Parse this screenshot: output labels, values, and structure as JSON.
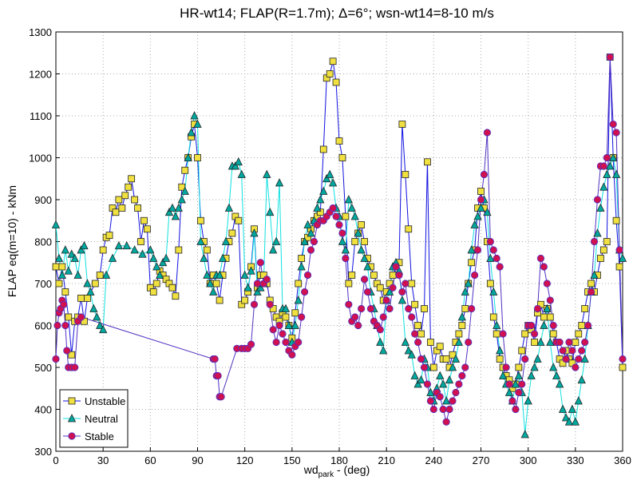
{
  "chart_data": {
    "type": "line",
    "title": "HR-wt14; FLAP(R=1.7m); Δ=6°; wsn-wt14=8-10 m/s",
    "x_label": {
      "text": "wd",
      "subscript": "park",
      "suffix": " - (deg)"
    },
    "y_label": "FLAP eq(m=10) - kNm",
    "xlim": [
      0,
      360
    ],
    "xticks": [
      0,
      30,
      60,
      90,
      120,
      150,
      180,
      210,
      240,
      270,
      300,
      330,
      360
    ],
    "ylim": [
      300,
      1300
    ],
    "yticks": [
      300,
      400,
      500,
      600,
      700,
      800,
      900,
      1000,
      1100,
      1200,
      1300
    ],
    "grid": true,
    "legend_loc": "lower left",
    "series": [
      {
        "name": "Unstable",
        "color": "#1010e0",
        "marker": "square",
        "marker_color": "#f0e040",
        "x": [
          0,
          2,
          4,
          6,
          8,
          10,
          12,
          14,
          16,
          18,
          20,
          25,
          28,
          30,
          32,
          34,
          36,
          38,
          40,
          42,
          44,
          46,
          48,
          50,
          52,
          54,
          56,
          58,
          60,
          62,
          64,
          66,
          68,
          70,
          72,
          74,
          76,
          78,
          80,
          82,
          84,
          86,
          88,
          90,
          92,
          94,
          96,
          98,
          100,
          102,
          104,
          106,
          108,
          110,
          112,
          114,
          116,
          118,
          120,
          122,
          124,
          126,
          128,
          130,
          132,
          134,
          136,
          138,
          140,
          142,
          144,
          146,
          148,
          150,
          152,
          154,
          156,
          158,
          160,
          162,
          164,
          166,
          168,
          170,
          172,
          174,
          176,
          178,
          180,
          182,
          184,
          186,
          188,
          190,
          192,
          194,
          196,
          198,
          200,
          202,
          204,
          206,
          208,
          210,
          212,
          214,
          216,
          218,
          220,
          222,
          224,
          226,
          228,
          230,
          232,
          234,
          236,
          238,
          240,
          242,
          244,
          246,
          248,
          250,
          252,
          254,
          256,
          258,
          260,
          262,
          264,
          266,
          268,
          270,
          272,
          274,
          276,
          278,
          280,
          282,
          284,
          286,
          288,
          290,
          292,
          294,
          296,
          298,
          300,
          302,
          304,
          306,
          308,
          310,
          312,
          314,
          316,
          318,
          320,
          322,
          324,
          326,
          328,
          330,
          332,
          334,
          336,
          338,
          340,
          342,
          344,
          346,
          348,
          350,
          352,
          354,
          356,
          358,
          360
        ],
        "values": [
          740,
          700,
          740,
          680,
          620,
          530,
          610,
          620,
          665,
          610,
          665,
          700,
          720,
          780,
          810,
          815,
          880,
          870,
          900,
          880,
          910,
          930,
          950,
          900,
          880,
          800,
          850,
          830,
          690,
          680,
          700,
          730,
          720,
          710,
          700,
          690,
          670,
          780,
          930,
          970,
          1000,
          1050,
          1080,
          1000,
          850,
          800,
          780,
          700,
          720,
          700,
          660,
          720,
          760,
          800,
          820,
          860,
          850,
          650,
          660,
          680,
          740,
          830,
          690,
          720,
          720,
          700,
          660,
          640,
          620,
          610,
          630,
          620,
          600,
          570,
          630,
          700,
          760,
          800,
          810,
          830,
          850,
          860,
          870,
          1020,
          1190,
          1200,
          1230,
          1180,
          1040,
          1000,
          860,
          700,
          720,
          800,
          820,
          840,
          800,
          760,
          740,
          720,
          700,
          690,
          660,
          680,
          700,
          720,
          740,
          750,
          1080,
          960,
          830,
          700,
          650,
          600,
          580,
          640,
          990,
          560,
          500,
          540,
          550,
          520,
          520,
          500,
          530,
          560,
          580,
          600,
          640,
          700,
          750,
          780,
          880,
          920,
          880,
          800,
          700,
          620,
          580,
          520,
          500,
          480,
          470,
          450,
          460,
          500,
          540,
          580,
          600,
          590,
          560,
          630,
          650,
          620,
          640,
          620,
          580,
          560,
          520,
          510,
          540,
          520,
          510,
          560,
          580,
          600,
          640,
          680,
          700,
          680,
          720,
          760,
          780,
          800,
          1240,
          1000,
          850,
          740,
          500
        ]
      },
      {
        "name": "Neutral",
        "color": "#10e0e0",
        "marker": "triangle",
        "marker_color": "#00a8a0",
        "x": [
          0,
          2,
          4,
          6,
          8,
          10,
          12,
          14,
          16,
          18,
          20,
          22,
          24,
          26,
          28,
          30,
          32,
          36,
          40,
          45,
          50,
          55,
          60,
          62,
          64,
          66,
          68,
          70,
          72,
          74,
          76,
          78,
          80,
          82,
          84,
          86,
          88,
          90,
          92,
          94,
          96,
          98,
          100,
          102,
          104,
          106,
          108,
          110,
          112,
          114,
          116,
          118,
          120,
          122,
          124,
          126,
          128,
          130,
          132,
          134,
          136,
          138,
          140,
          142,
          144,
          146,
          148,
          150,
          152,
          154,
          156,
          158,
          160,
          162,
          164,
          166,
          168,
          170,
          172,
          174,
          176,
          178,
          180,
          182,
          184,
          186,
          188,
          190,
          192,
          194,
          196,
          198,
          200,
          202,
          204,
          206,
          208,
          210,
          212,
          214,
          216,
          218,
          220,
          222,
          224,
          226,
          228,
          230,
          232,
          234,
          236,
          238,
          240,
          242,
          244,
          246,
          248,
          250,
          252,
          254,
          256,
          258,
          260,
          262,
          264,
          266,
          268,
          270,
          272,
          274,
          276,
          278,
          280,
          282,
          284,
          286,
          288,
          290,
          292,
          294,
          296,
          298,
          300,
          302,
          304,
          306,
          308,
          310,
          312,
          314,
          316,
          318,
          320,
          322,
          324,
          326,
          328,
          330,
          332,
          334,
          336,
          338,
          340,
          342,
          344,
          346,
          348,
          350,
          352,
          354,
          356,
          358,
          360
        ],
        "values": [
          840,
          760,
          720,
          780,
          730,
          770,
          760,
          720,
          780,
          790,
          700,
          680,
          640,
          620,
          600,
          590,
          720,
          760,
          790,
          790,
          780,
          770,
          780,
          760,
          740,
          720,
          750,
          760,
          870,
          880,
          860,
          880,
          900,
          920,
          1000,
          1060,
          1100,
          1080,
          800,
          760,
          720,
          700,
          680,
          720,
          720,
          760,
          800,
          880,
          980,
          980,
          990,
          960,
          720,
          690,
          730,
          820,
          680,
          690,
          700,
          960,
          870,
          780,
          800,
          940,
          640,
          640,
          600,
          560,
          600,
          660,
          740,
          800,
          840,
          820,
          850,
          880,
          900,
          920,
          950,
          960,
          940,
          880,
          860,
          800,
          780,
          900,
          880,
          860,
          820,
          780,
          760,
          740,
          680,
          640,
          600,
          560,
          540,
          660,
          680,
          740,
          750,
          730,
          660,
          560,
          540,
          530,
          480,
          460,
          470,
          520,
          500,
          440,
          420,
          450,
          480,
          460,
          420,
          470,
          500,
          520,
          560,
          620,
          680,
          700,
          780,
          840,
          860,
          880,
          900,
          870,
          760,
          680,
          600,
          540,
          480,
          460,
          440,
          420,
          460,
          480,
          440,
          340,
          420,
          480,
          500,
          520,
          560,
          600,
          640,
          560,
          500,
          480,
          460,
          400,
          380,
          370,
          400,
          370,
          420,
          470,
          520,
          600,
          680,
          720,
          820,
          880,
          930,
          960,
          980,
          1000,
          960,
          780,
          760
        ]
      },
      {
        "name": "Stable",
        "color": "#5030c0",
        "marker": "circle",
        "marker_color": "#d01050",
        "x": [
          0,
          1,
          2,
          3,
          4,
          5,
          6,
          7,
          8,
          10,
          12,
          14,
          16,
          100,
          101,
          102,
          103,
          104,
          105,
          115,
          118,
          120,
          122,
          124,
          126,
          128,
          130,
          132,
          134,
          136,
          138,
          140,
          142,
          144,
          146,
          148,
          150,
          152,
          154,
          156,
          158,
          160,
          162,
          164,
          166,
          168,
          170,
          172,
          174,
          176,
          178,
          180,
          182,
          184,
          186,
          188,
          190,
          192,
          194,
          196,
          198,
          200,
          202,
          204,
          206,
          208,
          210,
          212,
          214,
          216,
          218,
          220,
          222,
          224,
          226,
          228,
          230,
          232,
          234,
          236,
          238,
          240,
          242,
          244,
          246,
          248,
          250,
          252,
          254,
          256,
          258,
          260,
          262,
          264,
          266,
          268,
          270,
          272,
          274,
          276,
          278,
          280,
          282,
          284,
          286,
          288,
          290,
          292,
          294,
          296,
          298,
          300,
          302,
          304,
          306,
          308,
          310,
          312,
          314,
          316,
          318,
          320,
          322,
          324,
          326,
          328,
          330,
          332,
          334,
          336,
          338,
          340,
          342,
          344,
          346,
          348,
          350,
          352,
          354,
          356,
          358,
          360
        ],
        "values": [
          520,
          600,
          630,
          640,
          660,
          650,
          600,
          540,
          500,
          500,
          500,
          610,
          620,
          520,
          520,
          480,
          480,
          430,
          430,
          545,
          545,
          545,
          545,
          555,
          650,
          700,
          750,
          700,
          710,
          650,
          590,
          560,
          600,
          580,
          560,
          540,
          530,
          550,
          560,
          620,
          680,
          720,
          780,
          800,
          840,
          850,
          850,
          860,
          870,
          880,
          860,
          840,
          820,
          760,
          650,
          610,
          620,
          600,
          640,
          710,
          680,
          640,
          610,
          600,
          590,
          620,
          660,
          640,
          690,
          740,
          720,
          680,
          700,
          640,
          620,
          580,
          560,
          520,
          500,
          460,
          420,
          400,
          440,
          430,
          400,
          370,
          400,
          420,
          440,
          460,
          480,
          500,
          560,
          640,
          720,
          780,
          900,
          960,
          1060,
          800,
          780,
          760,
          740,
          580,
          500,
          460,
          420,
          400,
          440,
          460,
          520,
          600,
          600,
          580,
          640,
          760,
          740,
          700,
          660,
          600,
          560,
          560,
          540,
          520,
          560,
          540,
          500,
          520,
          540,
          560,
          600,
          680,
          800,
          900,
          980,
          980,
          1000,
          1240,
          1080,
          1060,
          780,
          520
        ]
      }
    ]
  }
}
